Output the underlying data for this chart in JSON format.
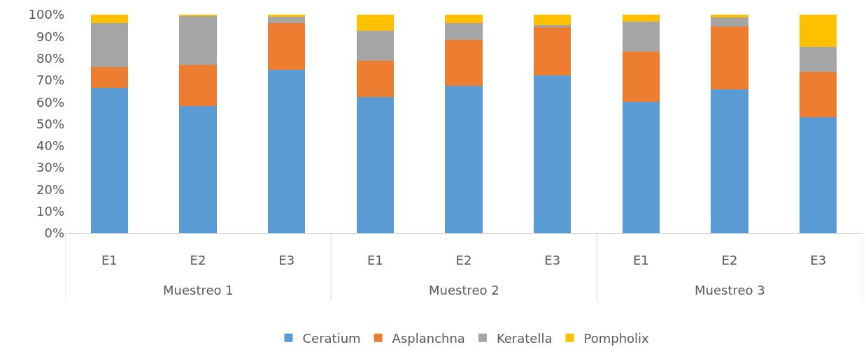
{
  "chart_data": {
    "type": "bar",
    "stacked": true,
    "categories": [
      "E1",
      "E2",
      "E3",
      "E1",
      "E2",
      "E3",
      "E1",
      "E2",
      "E3"
    ],
    "series": [
      {
        "name": "Ceratium",
        "color": "#5b9bd5",
        "values": [
          66.6,
          58.1,
          74.7,
          62.3,
          67.5,
          72.3,
          60.2,
          65.7,
          53.0
        ]
      },
      {
        "name": "Asplanchna",
        "color": "#ed7d31",
        "values": [
          9.3,
          19.0,
          21.4,
          16.6,
          21.1,
          22.0,
          22.9,
          28.9,
          20.8
        ]
      },
      {
        "name": "Keratella",
        "color": "#a5a5a5",
        "values": [
          20.2,
          22.3,
          3.0,
          13.9,
          7.5,
          1.0,
          13.6,
          4.2,
          11.4
        ]
      },
      {
        "name": "Pompholix",
        "color": "#ffc000",
        "values": [
          3.9,
          0.6,
          0.9,
          7.2,
          3.9,
          4.7,
          3.3,
          1.2,
          14.8
        ]
      }
    ],
    "annotations": [
      "Muestreo 1",
      "Muestreo 2",
      "Muestreo 3"
    ],
    "ylim": [
      0,
      100
    ],
    "yticks": [
      {
        "value": 0,
        "label": "0%"
      },
      {
        "value": 10,
        "label": "10%"
      },
      {
        "value": 20,
        "label": "20%"
      },
      {
        "value": 30,
        "label": "30%"
      },
      {
        "value": 40,
        "label": "40%"
      },
      {
        "value": 50,
        "label": "50%"
      },
      {
        "value": 60,
        "label": "60%"
      },
      {
        "value": 70,
        "label": "70%"
      },
      {
        "value": 80,
        "label": "80%"
      },
      {
        "value": 90,
        "label": "90%"
      },
      {
        "value": 100,
        "label": "100%"
      }
    ],
    "legend": "bottom"
  }
}
